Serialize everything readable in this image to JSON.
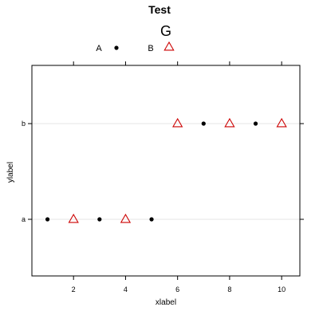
{
  "colors": {
    "background": "#ffffff",
    "panel_border": "#000000",
    "grid": "#e6e6e6",
    "tick": "#000000",
    "dot": "#000000",
    "triangle": "#cc0000"
  },
  "chart_data": {
    "type": "scatter",
    "title": "Test",
    "xlabel": "xlabel",
    "ylabel": "ylabel",
    "xlim": [
      0.4,
      10.7
    ],
    "x_ticks": [
      2,
      4,
      6,
      8,
      10
    ],
    "y_categories": [
      "a",
      "b"
    ],
    "grid": "horizontal lines at categories",
    "legend": {
      "title": "G",
      "position": "top",
      "entries": [
        {
          "label": "A",
          "marker": "dot",
          "color": "#000000"
        },
        {
          "label": "B",
          "marker": "triangle",
          "color": "#cc0000"
        }
      ]
    },
    "series": [
      {
        "name": "A",
        "marker": "dot",
        "color": "#000000",
        "points": [
          {
            "x": 1,
            "y": "a"
          },
          {
            "x": 3,
            "y": "a"
          },
          {
            "x": 5,
            "y": "a"
          },
          {
            "x": 7,
            "y": "b"
          },
          {
            "x": 9,
            "y": "b"
          }
        ]
      },
      {
        "name": "B",
        "marker": "triangle",
        "color": "#cc0000",
        "points": [
          {
            "x": 2,
            "y": "a"
          },
          {
            "x": 4,
            "y": "a"
          },
          {
            "x": 6,
            "y": "b"
          },
          {
            "x": 8,
            "y": "b"
          },
          {
            "x": 10,
            "y": "b"
          }
        ]
      }
    ]
  }
}
